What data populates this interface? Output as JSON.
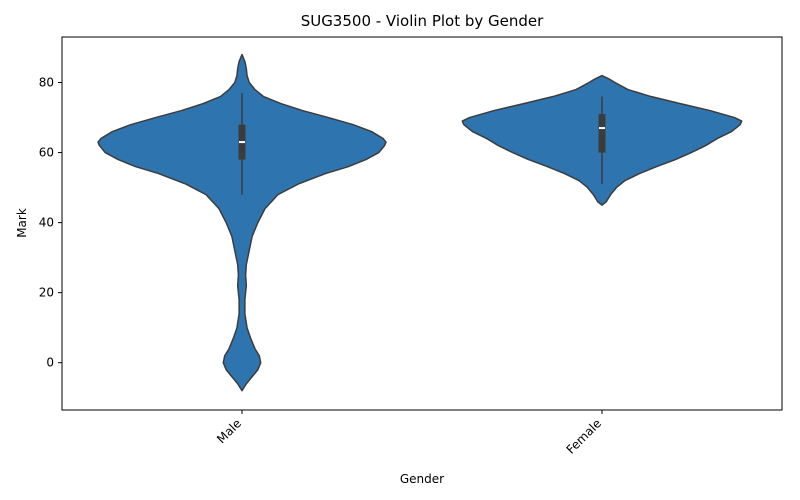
{
  "chart_data": {
    "type": "violin",
    "title": "SUG3500 - Violin Plot by Gender",
    "xlabel": "Gender",
    "ylabel": "Mark",
    "categories": [
      "Male",
      "Female"
    ],
    "x_tick_rotation": 45,
    "ylim": [
      -13.5,
      93
    ],
    "yticks": [
      0,
      20,
      40,
      60,
      80
    ],
    "ytick_labels": [
      "0",
      "20",
      "40",
      "60",
      "80"
    ],
    "grid": false,
    "legend": "none",
    "fill_color": "#2e75b0",
    "edge_color": "#3c3c3c",
    "median_color": "#ffffff",
    "violins": [
      {
        "category": "Male",
        "min": -8,
        "max": 88,
        "q1": 58,
        "median": 63,
        "q3": 68,
        "whisker_low": 48,
        "whisker_high": 77,
        "profile": [
          [
            -8,
            0
          ],
          [
            -6,
            0.03
          ],
          [
            -4,
            0.07
          ],
          [
            -2,
            0.11
          ],
          [
            0,
            0.13
          ],
          [
            2,
            0.12
          ],
          [
            4,
            0.09
          ],
          [
            7,
            0.06
          ],
          [
            10,
            0.035
          ],
          [
            14,
            0.02
          ],
          [
            18,
            0.02
          ],
          [
            22,
            0.03
          ],
          [
            25,
            0.025
          ],
          [
            28,
            0.03
          ],
          [
            32,
            0.05
          ],
          [
            36,
            0.07
          ],
          [
            40,
            0.11
          ],
          [
            44,
            0.16
          ],
          [
            48,
            0.25
          ],
          [
            51,
            0.39
          ],
          [
            54,
            0.58
          ],
          [
            56,
            0.74
          ],
          [
            58,
            0.86
          ],
          [
            60,
            0.95
          ],
          [
            62,
            0.99
          ],
          [
            63,
            1.0
          ],
          [
            64,
            0.98
          ],
          [
            66,
            0.9
          ],
          [
            68,
            0.77
          ],
          [
            70,
            0.6
          ],
          [
            72,
            0.42
          ],
          [
            74,
            0.27
          ],
          [
            76,
            0.15
          ],
          [
            78,
            0.09
          ],
          [
            80,
            0.05
          ],
          [
            82,
            0.035
          ],
          [
            84,
            0.03
          ],
          [
            86,
            0.02
          ],
          [
            88,
            0
          ]
        ]
      },
      {
        "category": "Female",
        "min": 45,
        "max": 82,
        "q1": 60,
        "median": 67,
        "q3": 71,
        "whisker_low": 51,
        "whisker_high": 76,
        "profile": [
          [
            45,
            0
          ],
          [
            46,
            0.03
          ],
          [
            48,
            0.06
          ],
          [
            50,
            0.1
          ],
          [
            52,
            0.16
          ],
          [
            54,
            0.26
          ],
          [
            56,
            0.38
          ],
          [
            58,
            0.51
          ],
          [
            60,
            0.62
          ],
          [
            62,
            0.72
          ],
          [
            64,
            0.8
          ],
          [
            66,
            0.9
          ],
          [
            68,
            0.96
          ],
          [
            69,
            0.97
          ],
          [
            70,
            0.92
          ],
          [
            72,
            0.75
          ],
          [
            74,
            0.54
          ],
          [
            76,
            0.34
          ],
          [
            78,
            0.18
          ],
          [
            80,
            0.09
          ],
          [
            81,
            0.05
          ],
          [
            82,
            0
          ]
        ]
      }
    ]
  }
}
